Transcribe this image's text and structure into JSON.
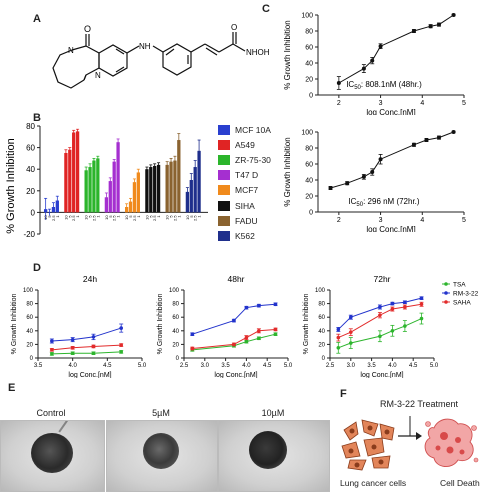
{
  "panels": {
    "A": "A",
    "B": "B",
    "C": "C",
    "D": "D",
    "E": "E",
    "F": "F"
  },
  "molecule": {
    "atoms": [
      "O",
      "N",
      "N",
      "NH",
      "O",
      "NHOH"
    ]
  },
  "colors": {
    "line": "#111111",
    "bar_error": "#444444"
  },
  "chart_data": [
    {
      "panel": "C-top",
      "type": "line",
      "ylabel": "% Growth Inhibition",
      "xlabel": "log Conc.[nM]",
      "annotation": "IC50: 808.1nM (48hr.)",
      "ic50_value": "808.1nM",
      "ic50_time": "48hr.",
      "xlim": [
        1.5,
        5
      ],
      "ylim": [
        0,
        100
      ],
      "x_ticks": [
        "2",
        "3",
        "4",
        "5"
      ],
      "y_ticks": [
        "0",
        "20",
        "40",
        "60",
        "80",
        "100"
      ],
      "x": [
        2.0,
        2.6,
        2.8,
        3.0,
        3.8,
        4.2,
        4.4,
        4.75
      ],
      "y": [
        15,
        33,
        43,
        61,
        80,
        86,
        88,
        100
      ],
      "err": [
        8,
        5,
        4,
        3,
        2,
        2,
        2,
        1
      ]
    },
    {
      "panel": "C-bottom",
      "type": "line",
      "ylabel": "% Growth Inhibition",
      "xlabel": "log Conc.[nM]",
      "annotation": "IC50: 296 nM (72hr.)",
      "ic50_value": "296 nM",
      "ic50_time": "72hr.",
      "xlim": [
        1.5,
        5
      ],
      "ylim": [
        0,
        100
      ],
      "x_ticks": [
        "2",
        "3",
        "4",
        "5"
      ],
      "y_ticks": [
        "0",
        "20",
        "40",
        "60",
        "80",
        "100"
      ],
      "x": [
        1.8,
        2.2,
        2.6,
        2.8,
        3.0,
        3.8,
        4.1,
        4.4,
        4.75
      ],
      "y": [
        30,
        36,
        44,
        50,
        66,
        84,
        90,
        93,
        100
      ],
      "err": [
        2,
        2,
        3,
        4,
        6,
        2,
        2,
        2,
        1
      ]
    },
    {
      "panel": "B",
      "type": "bar",
      "ylabel": "% Growth Inhibition",
      "ylim": [
        -20,
        80
      ],
      "y_ticks": [
        "-20",
        "0",
        "20",
        "40",
        "60",
        "80"
      ],
      "group_tick_labels": [
        "10",
        "5",
        "2.5",
        "1"
      ],
      "legend": [
        "MCF 10A",
        "A549",
        "ZR-75-30",
        "T47 D",
        "MCF7",
        "SIHA",
        "FADU",
        "K562"
      ],
      "series_colors": [
        "#2a3fcf",
        "#e02424",
        "#2bb52b",
        "#a52fd0",
        "#f08a1c",
        "#111111",
        "#8a6330",
        "#1f2f8c"
      ],
      "values": [
        [
          3,
          0,
          5,
          11
        ],
        [
          55,
          58,
          74,
          75
        ],
        [
          39,
          42,
          48,
          50
        ],
        [
          14,
          29,
          47,
          65
        ],
        [
          5,
          10,
          28,
          37
        ],
        [
          40,
          42,
          43,
          44
        ],
        [
          44,
          47,
          48,
          67
        ],
        [
          19,
          30,
          42,
          57
        ]
      ],
      "errors": [
        [
          10,
          3,
          4,
          4
        ],
        [
          3,
          2,
          2,
          2
        ],
        [
          3,
          3,
          2,
          2
        ],
        [
          4,
          3,
          2,
          3
        ],
        [
          3,
          3,
          3,
          3
        ],
        [
          2,
          2,
          2,
          2
        ],
        [
          3,
          3,
          4,
          6
        ],
        [
          4,
          6,
          6,
          10
        ]
      ]
    },
    {
      "panel": "D-24h",
      "type": "line",
      "title": "24h",
      "ylabel": "% Growth Inhibition",
      "xlabel": "log Conc.[nM]",
      "xlim": [
        3.5,
        5
      ],
      "ylim": [
        0,
        100
      ],
      "x_ticks": [
        "3.5",
        "4.0",
        "4.5",
        "5.0"
      ],
      "y_ticks": [
        "0",
        "20",
        "40",
        "60",
        "80",
        "100"
      ],
      "x": [
        3.7,
        4.0,
        4.3,
        4.7
      ],
      "series": [
        {
          "name": "TSA",
          "color": "#2db52d",
          "values": [
            6,
            7,
            7,
            9
          ],
          "err": [
            2,
            2,
            2,
            2
          ]
        },
        {
          "name": "SAHA",
          "color": "#e22b2b",
          "values": [
            12,
            15,
            17,
            19
          ],
          "err": [
            2,
            2,
            2,
            2
          ]
        },
        {
          "name": "RM-3-22",
          "color": "#2233cc",
          "values": [
            25,
            27,
            31,
            44
          ],
          "err": [
            3,
            3,
            4,
            6
          ]
        }
      ]
    },
    {
      "panel": "D-48hr",
      "type": "line",
      "title": "48hr",
      "ylabel": "% Growth Inhibition",
      "xlabel": "log Conc.[nM]",
      "xlim": [
        2.5,
        5
      ],
      "ylim": [
        0,
        100
      ],
      "x_ticks": [
        "2.5",
        "3.0",
        "3.5",
        "4.0",
        "4.5",
        "5.0"
      ],
      "y_ticks": [
        "0",
        "20",
        "40",
        "60",
        "80",
        "100"
      ],
      "x": [
        2.7,
        3.7,
        4.0,
        4.3,
        4.7
      ],
      "series": [
        {
          "name": "TSA",
          "color": "#2db52d",
          "values": [
            12,
            18,
            24,
            29,
            35
          ],
          "err": [
            2,
            2,
            2,
            2,
            2
          ]
        },
        {
          "name": "SAHA",
          "color": "#e22b2b",
          "values": [
            14,
            20,
            30,
            40,
            42
          ],
          "err": [
            2,
            2,
            3,
            3,
            2
          ]
        },
        {
          "name": "RM-3-22",
          "color": "#2233cc",
          "values": [
            35,
            55,
            74,
            77,
            79
          ],
          "err": [
            2,
            2,
            2,
            2,
            2
          ]
        }
      ]
    },
    {
      "panel": "D-72hr",
      "type": "line",
      "title": "72hr",
      "ylabel": "% Growth Inhibition",
      "xlabel": "log Conc.[nM]",
      "xlim": [
        2.5,
        5
      ],
      "ylim": [
        0,
        100
      ],
      "x_ticks": [
        "2.5",
        "3.0",
        "3.5",
        "4.0",
        "4.5",
        "5.0"
      ],
      "y_ticks": [
        "0",
        "20",
        "40",
        "60",
        "80",
        "100"
      ],
      "x": [
        2.7,
        3.0,
        3.7,
        4.0,
        4.3,
        4.7
      ],
      "series": [
        {
          "name": "TSA",
          "color": "#2db52d",
          "values": [
            15,
            22,
            32,
            40,
            47,
            58
          ],
          "err": [
            8,
            8,
            8,
            8,
            8,
            8
          ]
        },
        {
          "name": "RM-3-22",
          "color": "#2233cc",
          "values": [
            42,
            60,
            75,
            80,
            82,
            88
          ],
          "err": [
            3,
            3,
            3,
            2,
            2,
            2
          ]
        },
        {
          "name": "SAHA",
          "color": "#e22b2b",
          "values": [
            30,
            38,
            63,
            72,
            75,
            79
          ],
          "err": [
            5,
            5,
            4,
            3,
            3,
            3
          ]
        }
      ],
      "legend": [
        "TSA",
        "RM-3-22",
        "SAHA"
      ]
    }
  ],
  "microscopy": {
    "captions": [
      "Control",
      "5µM",
      "10µM"
    ]
  },
  "schematic": {
    "treatment": "RM-3-22 Treatment",
    "left_label": "Lung cancer cells",
    "right_label": "Cell Death"
  }
}
